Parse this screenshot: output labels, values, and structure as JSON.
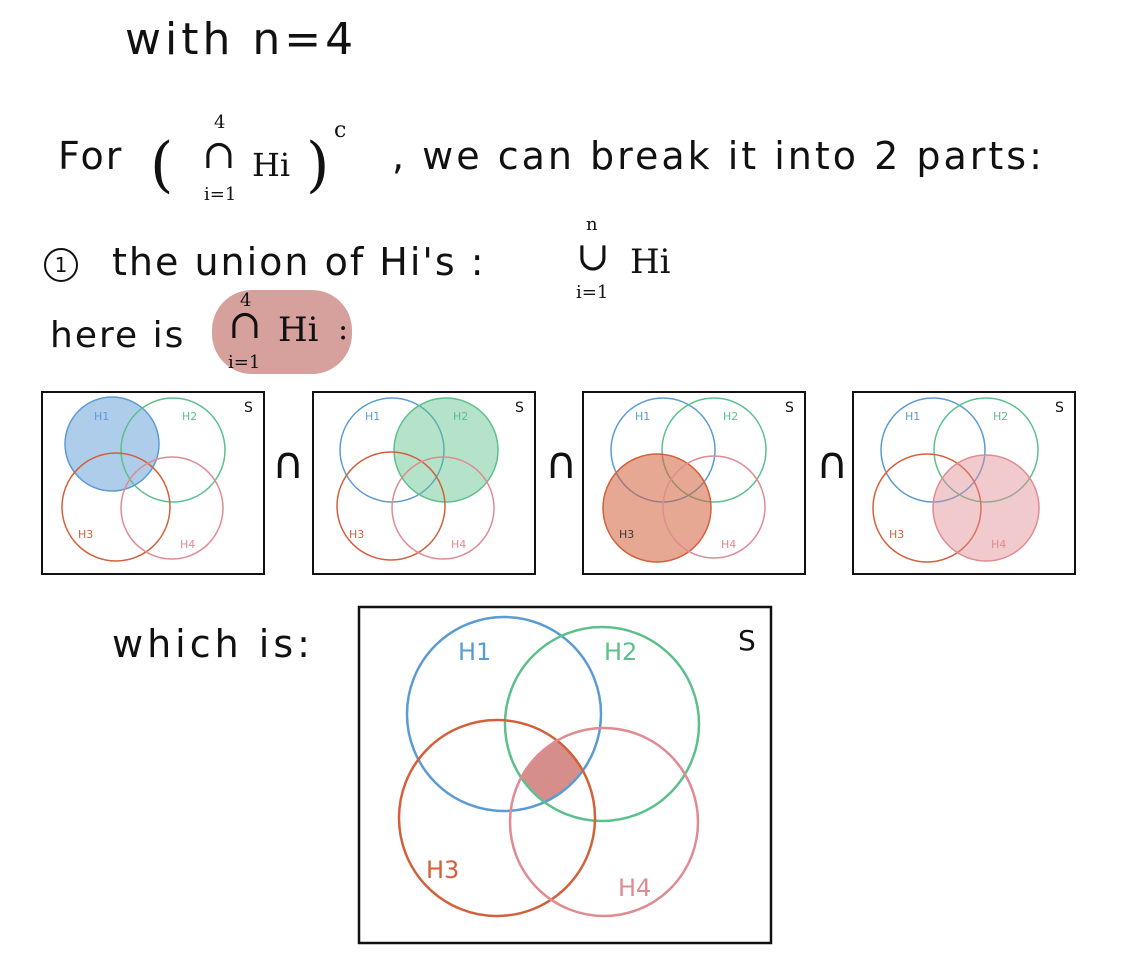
{
  "line_with": "with n=4",
  "line_for": {
    "lead": "For",
    "op_symbol": "∩",
    "upper": "4",
    "lower": "i=1",
    "set_var": "Hi",
    "complement": "c",
    "rest": ", we can break it into 2 parts:"
  },
  "line_union": {
    "number": "1",
    "lead": "the union of Hi's :",
    "op_symbol": "∪",
    "upper": "n",
    "lower": "i=1",
    "set_var": "Hi"
  },
  "line_here": {
    "lead": "here is",
    "op_symbol": "∩",
    "upper": "4",
    "lower": "i=1",
    "set_var": "Hi",
    "trail": ":"
  },
  "intersection_symbol": "∩",
  "line_which": "which is:",
  "universe_label": "S",
  "set_labels": [
    "H1",
    "H2",
    "H3",
    "H4"
  ],
  "colors": {
    "h1": "#5b9bd5",
    "h2": "#5cc08a",
    "h3": "#d2603a",
    "h4": "#e08a92",
    "highlight": "#cf908c",
    "ink": "#111111"
  },
  "small_panels": [
    {
      "shaded_set": "H1"
    },
    {
      "shaded_set": "H2"
    },
    {
      "shaded_set": "H3"
    },
    {
      "shaded_set": "H4"
    }
  ],
  "big_panel": {
    "shaded_region": "H1 ∩ H2 ∩ H3 ∩ H4"
  }
}
